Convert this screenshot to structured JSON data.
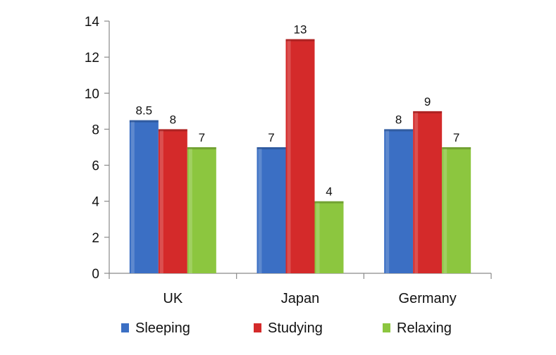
{
  "chart_data": {
    "type": "bar",
    "categories": [
      "UK",
      "Japan",
      "Germany"
    ],
    "series": [
      {
        "name": "Sleeping",
        "values": [
          8.5,
          7,
          8
        ],
        "labels": [
          "8.5",
          "7",
          "8"
        ],
        "color": "#3b6fc4"
      },
      {
        "name": "Studying",
        "values": [
          8,
          13,
          9
        ],
        "labels": [
          "8",
          "13",
          "9"
        ],
        "color": "#d42a2a"
      },
      {
        "name": "Relaxing",
        "values": [
          7,
          4,
          7
        ],
        "labels": [
          "7",
          "4",
          "7"
        ],
        "color": "#8cc63f"
      }
    ],
    "y_ticks": [
      "0",
      "2",
      "4",
      "6",
      "8",
      "10",
      "12",
      "14"
    ],
    "ylim": [
      0,
      14
    ],
    "grid": false,
    "legend_position": "bottom",
    "title": "",
    "xlabel": "",
    "ylabel": ""
  }
}
